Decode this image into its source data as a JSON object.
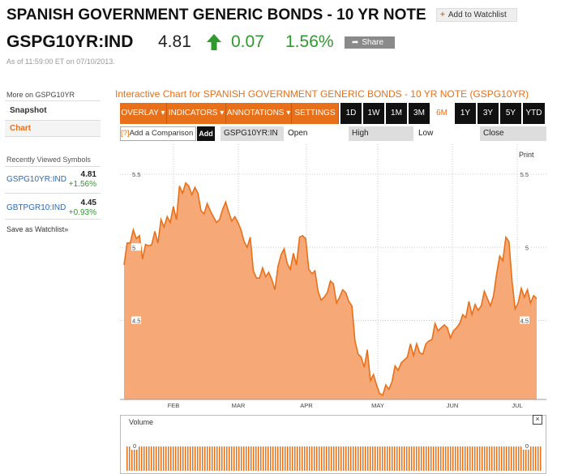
{
  "header": {
    "title": "SPANISH GOVERNMENT GENERIC BONDS - 10 YR NOTE",
    "watchlist_label": "Add to Watchlist",
    "ticker": "GSPG10YR:IND",
    "price": "4.81",
    "change": "0.07",
    "change_pct": "1.56%",
    "share_label": "Share",
    "as_of": "As of 11:59:00 ET on 07/10/2013."
  },
  "sidebar": {
    "more_on": "More on GSPG10YR",
    "items": [
      {
        "label": "Snapshot"
      },
      {
        "label": "Chart"
      }
    ],
    "recent_title": "Recently Viewed Symbols",
    "recent": [
      {
        "symbol": "GSPG10YR:IND",
        "price": "4.81",
        "change": "+1.56%"
      },
      {
        "symbol": "GBTPGR10:IND",
        "price": "4.45",
        "change": "+0.93%"
      }
    ],
    "save_label": "Save as Watchlist»"
  },
  "chart_header": {
    "title": "Interactive Chart for SPANISH GOVERNMENT GENERIC BONDS - 10 YR NOTE (GSPG10YR)",
    "menus": [
      "OVERLAY ▾",
      "INDICATORS ▾",
      "ANNOTATIONS ▾",
      "SETTINGS ▾"
    ],
    "periods": [
      "1D",
      "1W",
      "1M",
      "3M",
      "6M",
      "1Y",
      "3Y",
      "5Y",
      "YTD"
    ],
    "active_period": "6M",
    "compare_q": "[?]",
    "compare_label": "Add a Comparison",
    "add_label": "Add",
    "fields": {
      "symbol": "GSPG10YR:IN",
      "open": "Open",
      "high": "High",
      "low": "Low",
      "close": "Close"
    },
    "print_label": "Print",
    "volume_label": "Volume",
    "close_icon": "×"
  },
  "chart_data": {
    "type": "area",
    "title": "",
    "xlabel": "",
    "ylabel": "",
    "x_ticks": [
      "FEB",
      "MAR",
      "APR",
      "MAY",
      "JUN",
      "JUL"
    ],
    "y_ticks_left": [
      "5.5",
      "5",
      "4.5"
    ],
    "y_ticks_right": [
      "5.5",
      "5",
      "4.5"
    ],
    "volume_ticks": [
      "0",
      "0"
    ],
    "ylim": [
      3.96,
      5.65
    ],
    "colors": {
      "fill": "#f7a877",
      "line": "#e8701a",
      "grid": "#cccccc"
    },
    "series": [
      {
        "values": [
          4.88,
          5.03,
          5.03,
          5.12,
          5.06,
          5.08,
          4.92,
          5.02,
          5.01,
          5.02,
          5.11,
          5.03,
          5.19,
          5.14,
          5.21,
          5.17,
          5.28,
          5.19,
          5.42,
          5.37,
          5.44,
          5.42,
          5.36,
          5.41,
          5.37,
          5.25,
          5.23,
          5.3,
          5.25,
          5.21,
          5.17,
          5.19,
          5.26,
          5.31,
          5.24,
          5.18,
          5.21,
          5.17,
          5.12,
          5.04,
          5.0,
          5.07,
          4.84,
          4.79,
          4.79,
          4.86,
          4.8,
          4.83,
          4.78,
          4.71,
          4.87,
          4.95,
          4.99,
          4.89,
          4.85,
          4.96,
          4.88,
          5.07,
          5.08,
          5.06,
          4.85,
          4.82,
          4.84,
          4.7,
          4.64,
          4.66,
          4.69,
          4.77,
          4.75,
          4.62,
          4.66,
          4.71,
          4.69,
          4.63,
          4.6,
          4.36,
          4.27,
          4.25,
          4.18,
          4.3,
          4.09,
          4.13,
          4.06,
          4.0,
          3.99,
          4.06,
          4.03,
          4.08,
          4.19,
          4.16,
          4.21,
          4.23,
          4.25,
          4.34,
          4.26,
          4.34,
          4.28,
          4.27,
          4.34,
          4.36,
          4.37,
          4.48,
          4.43,
          4.45,
          4.47,
          4.45,
          4.38,
          4.43,
          4.45,
          4.48,
          4.54,
          4.52,
          4.63,
          4.54,
          4.61,
          4.57,
          4.6,
          4.7,
          4.65,
          4.6,
          4.67,
          4.82,
          4.94,
          4.91,
          5.07,
          5.04,
          4.77,
          4.58,
          4.62,
          4.72,
          4.66,
          4.71,
          4.62,
          4.67,
          4.65
        ]
      }
    ]
  }
}
